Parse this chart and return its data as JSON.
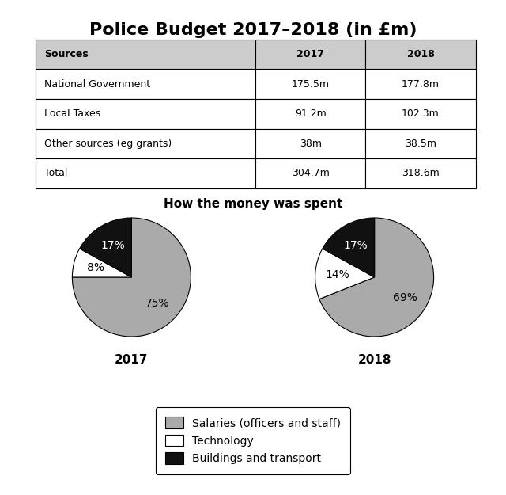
{
  "title": "Police Budget 2017–2018 (in £m)",
  "table": {
    "headers": [
      "Sources",
      "2017",
      "2018"
    ],
    "rows": [
      [
        "National Government",
        "175.5m",
        "177.8m"
      ],
      [
        "Local Taxes",
        "91.2m",
        "102.3m"
      ],
      [
        "Other sources (eg grants)",
        "38m",
        "38.5m"
      ],
      [
        "Total",
        "304.7m",
        "318.6m"
      ]
    ]
  },
  "pie_subtitle": "How the money was spent",
  "pie_2017": {
    "label": "2017",
    "values": [
      75,
      8,
      17
    ],
    "colors": [
      "#aaaaaa",
      "#ffffff",
      "#111111"
    ],
    "labels": [
      "75%",
      "8%",
      "17%"
    ],
    "startangle": 90
  },
  "pie_2018": {
    "label": "2018",
    "values": [
      69,
      14,
      17
    ],
    "colors": [
      "#aaaaaa",
      "#ffffff",
      "#111111"
    ],
    "labels": [
      "69%",
      "14%",
      "17%"
    ],
    "startangle": 90
  },
  "legend_items": [
    {
      "label": "Salaries (officers and staff)",
      "color": "#aaaaaa"
    },
    {
      "label": "Technology",
      "color": "#ffffff"
    },
    {
      "label": "Buildings and transport",
      "color": "#111111"
    }
  ],
  "background_color": "#ffffff",
  "title_fontsize": 16,
  "table_fontsize": 9,
  "pie_label_fontsize": 10,
  "pie_year_fontsize": 11,
  "subtitle_fontsize": 11,
  "legend_fontsize": 10
}
